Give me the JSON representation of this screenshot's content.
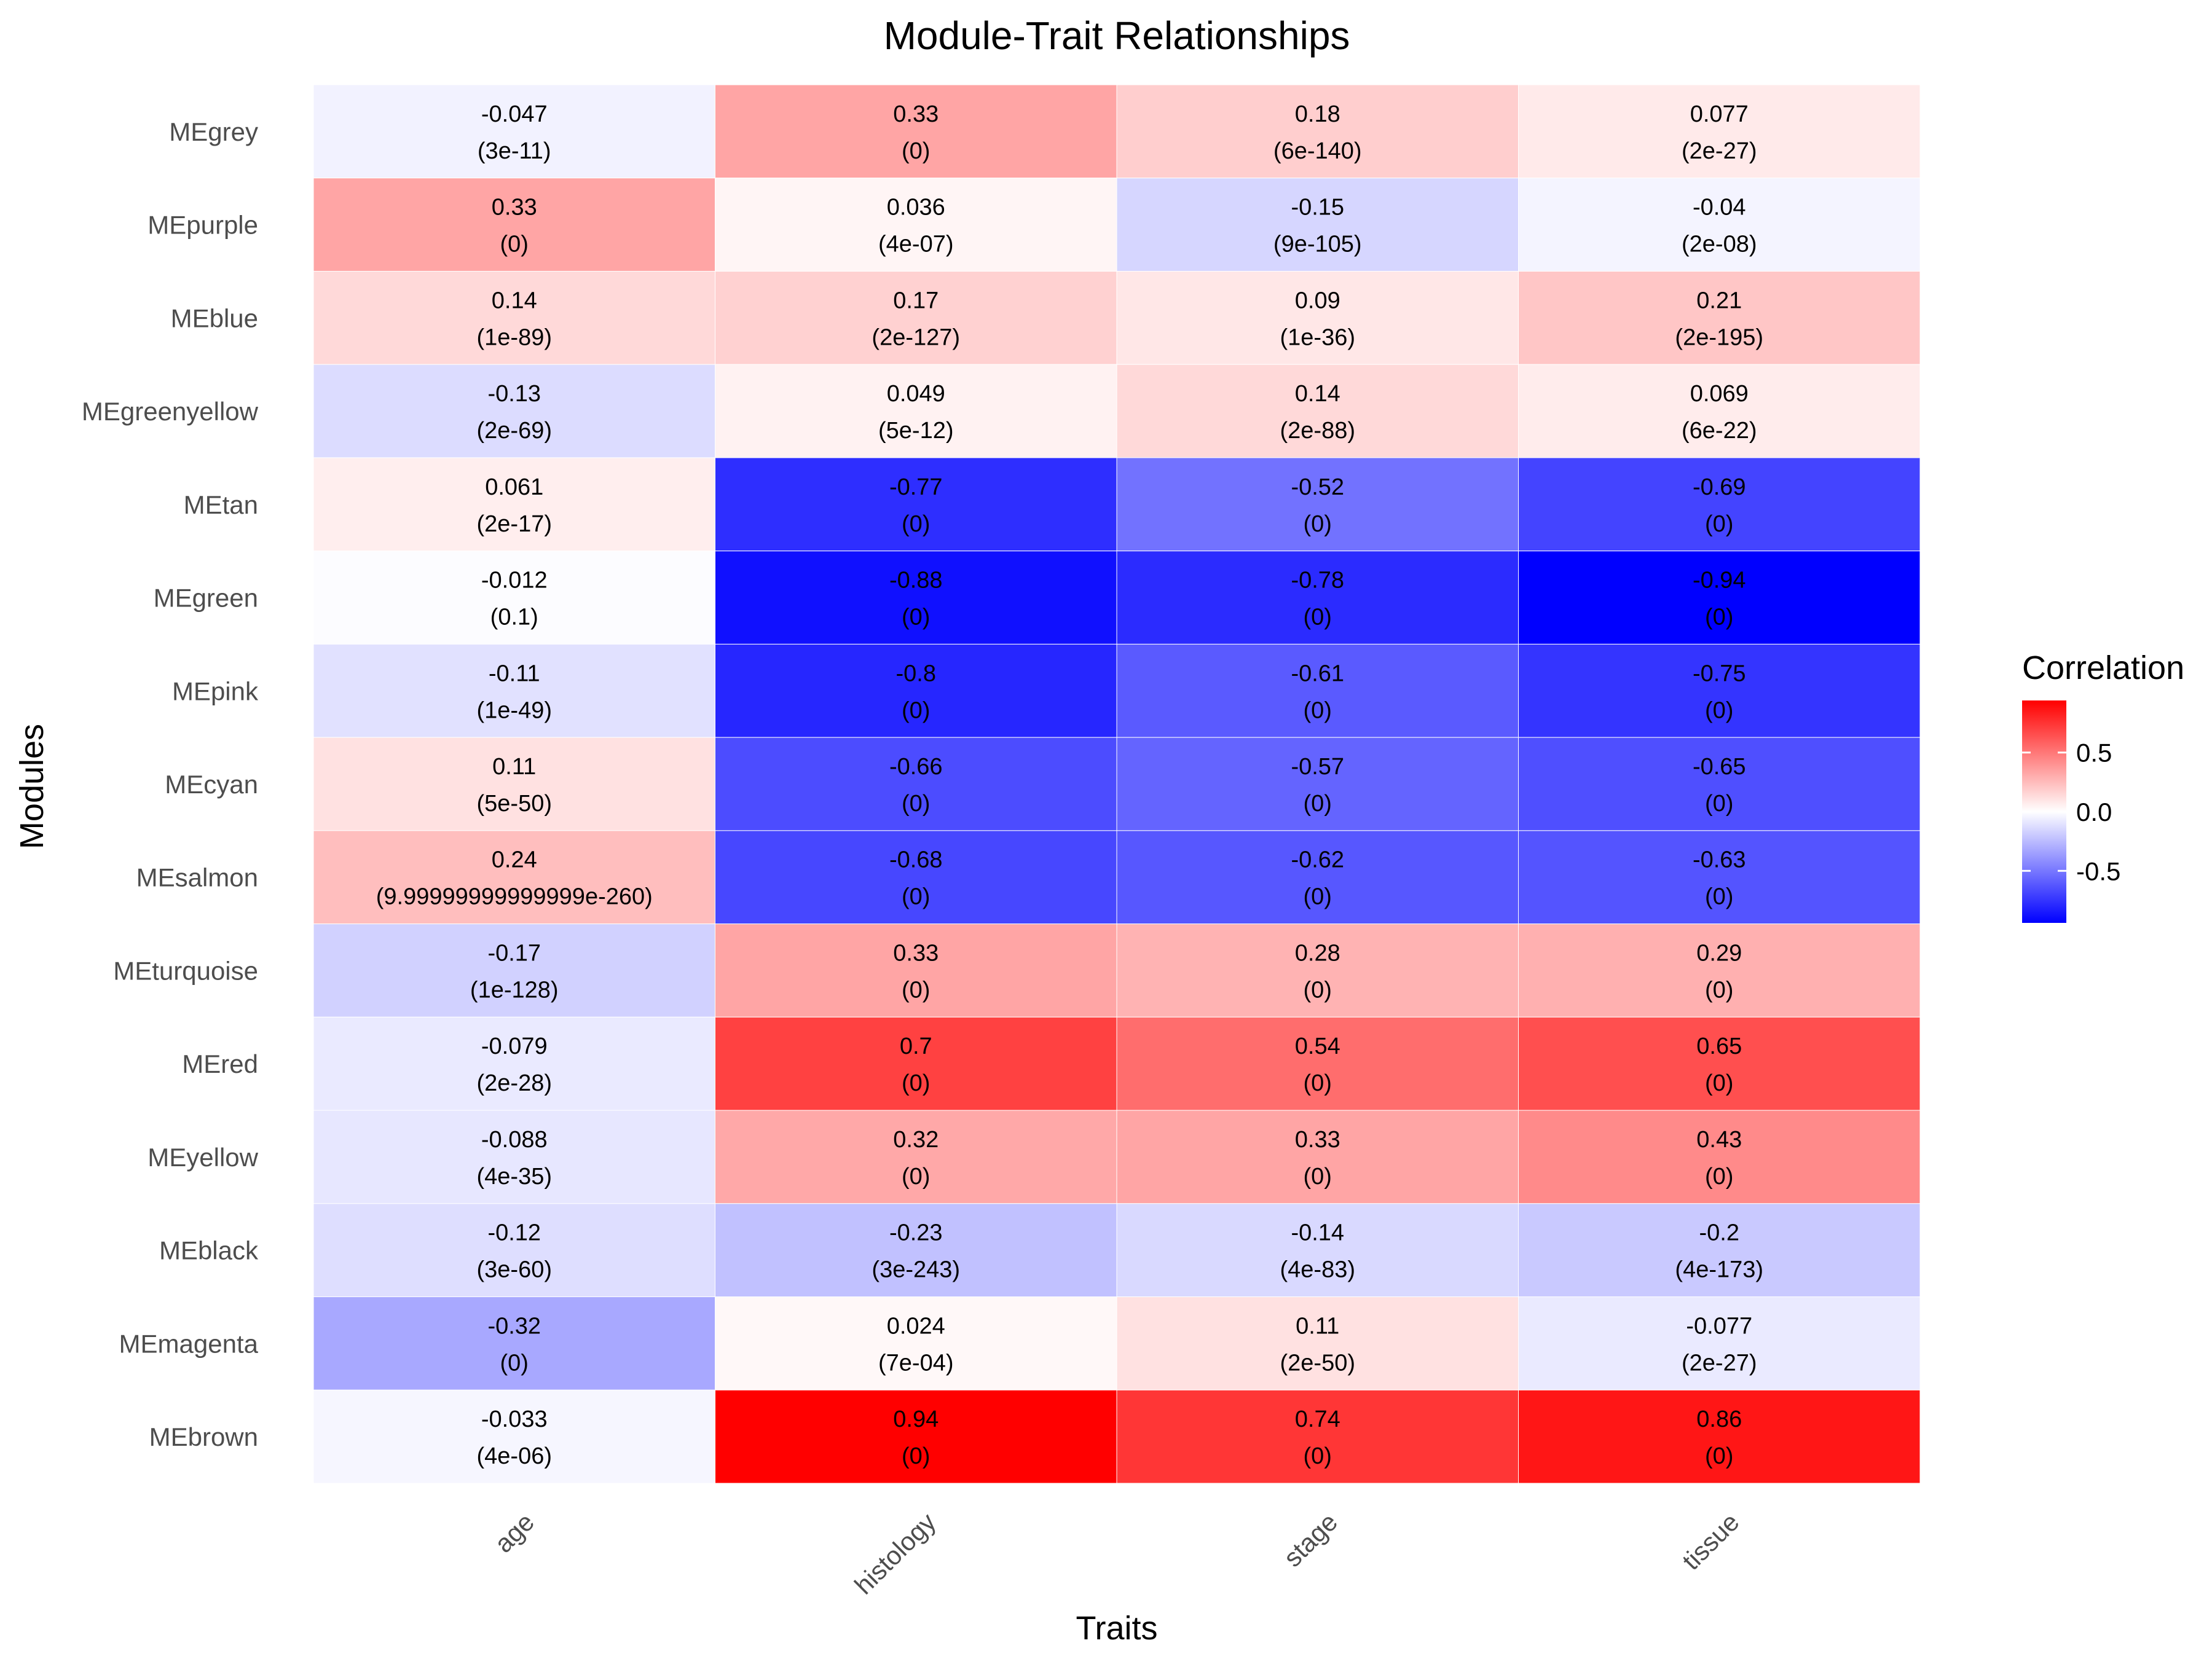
{
  "chart_data": {
    "type": "heatmap",
    "title": "Module-Trait Relationships",
    "xlabel": "Traits",
    "ylabel": "Modules",
    "columns": [
      "age",
      "histology",
      "stage",
      "tissue"
    ],
    "rows": [
      "MEgrey",
      "MEpurple",
      "MEblue",
      "MEgreenyellow",
      "MEtan",
      "MEgreen",
      "MEpink",
      "MEcyan",
      "MEsalmon",
      "MEturquoise",
      "MEred",
      "MEyellow",
      "MEblack",
      "MEmagenta",
      "MEbrown"
    ],
    "values": [
      [
        -0.047,
        0.33,
        0.18,
        0.077
      ],
      [
        0.33,
        0.036,
        -0.15,
        -0.04
      ],
      [
        0.14,
        0.17,
        0.09,
        0.21
      ],
      [
        -0.13,
        0.049,
        0.14,
        0.069
      ],
      [
        0.061,
        -0.77,
        -0.52,
        -0.69
      ],
      [
        -0.012,
        -0.88,
        -0.78,
        -0.94
      ],
      [
        -0.11,
        -0.8,
        -0.61,
        -0.75
      ],
      [
        0.11,
        -0.66,
        -0.57,
        -0.65
      ],
      [
        0.24,
        -0.68,
        -0.62,
        -0.63
      ],
      [
        -0.17,
        0.33,
        0.28,
        0.29
      ],
      [
        -0.079,
        0.7,
        0.54,
        0.65
      ],
      [
        -0.088,
        0.32,
        0.33,
        0.43
      ],
      [
        -0.12,
        -0.23,
        -0.14,
        -0.2
      ],
      [
        -0.32,
        0.024,
        0.11,
        -0.077
      ],
      [
        -0.033,
        0.94,
        0.74,
        0.86
      ]
    ],
    "value_labels": [
      [
        "-0.047",
        "0.33",
        "0.18",
        "0.077"
      ],
      [
        "0.33",
        "0.036",
        "-0.15",
        "-0.04"
      ],
      [
        "0.14",
        "0.17",
        "0.09",
        "0.21"
      ],
      [
        "-0.13",
        "0.049",
        "0.14",
        "0.069"
      ],
      [
        "0.061",
        "-0.77",
        "-0.52",
        "-0.69"
      ],
      [
        "-0.012",
        "-0.88",
        "-0.78",
        "-0.94"
      ],
      [
        "-0.11",
        "-0.8",
        "-0.61",
        "-0.75"
      ],
      [
        "0.11",
        "-0.66",
        "-0.57",
        "-0.65"
      ],
      [
        "0.24",
        "-0.68",
        "-0.62",
        "-0.63"
      ],
      [
        "-0.17",
        "0.33",
        "0.28",
        "0.29"
      ],
      [
        "-0.079",
        "0.7",
        "0.54",
        "0.65"
      ],
      [
        "-0.088",
        "0.32",
        "0.33",
        "0.43"
      ],
      [
        "-0.12",
        "-0.23",
        "-0.14",
        "-0.2"
      ],
      [
        "-0.32",
        "0.024",
        "0.11",
        "-0.077"
      ],
      [
        "-0.033",
        "0.94",
        "0.74",
        "0.86"
      ]
    ],
    "pvalues": [
      [
        "(3e-11)",
        "(0)",
        "(6e-140)",
        "(2e-27)"
      ],
      [
        "(0)",
        "(4e-07)",
        "(9e-105)",
        "(2e-08)"
      ],
      [
        "(1e-89)",
        "(2e-127)",
        "(1e-36)",
        "(2e-195)"
      ],
      [
        "(2e-69)",
        "(5e-12)",
        "(2e-88)",
        "(6e-22)"
      ],
      [
        "(2e-17)",
        "(0)",
        "(0)",
        "(0)"
      ],
      [
        "(0.1)",
        "(0)",
        "(0)",
        "(0)"
      ],
      [
        "(1e-49)",
        "(0)",
        "(0)",
        "(0)"
      ],
      [
        "(5e-50)",
        "(0)",
        "(0)",
        "(0)"
      ],
      [
        "(9.99999999999999e-260)",
        "(0)",
        "(0)",
        "(0)"
      ],
      [
        "(1e-128)",
        "(0)",
        "(0)",
        "(0)"
      ],
      [
        "(2e-28)",
        "(0)",
        "(0)",
        "(0)"
      ],
      [
        "(4e-35)",
        "(0)",
        "(0)",
        "(0)"
      ],
      [
        "(3e-60)",
        "(3e-243)",
        "(4e-83)",
        "(4e-173)"
      ],
      [
        "(0)",
        "(7e-04)",
        "(2e-50)",
        "(2e-27)"
      ],
      [
        "(4e-06)",
        "(0)",
        "(0)",
        "(0)"
      ]
    ],
    "color_scale": {
      "low": "#0000ff",
      "mid": "#ffffff",
      "high": "#ff0000",
      "limits": [
        -0.94,
        0.94
      ]
    },
    "legend": {
      "title": "Correlation",
      "ticks": [
        0.5,
        0.0,
        -0.5
      ],
      "tick_labels": [
        "0.5",
        "0.0",
        "-0.5"
      ],
      "placement": "right"
    },
    "grid": false
  }
}
